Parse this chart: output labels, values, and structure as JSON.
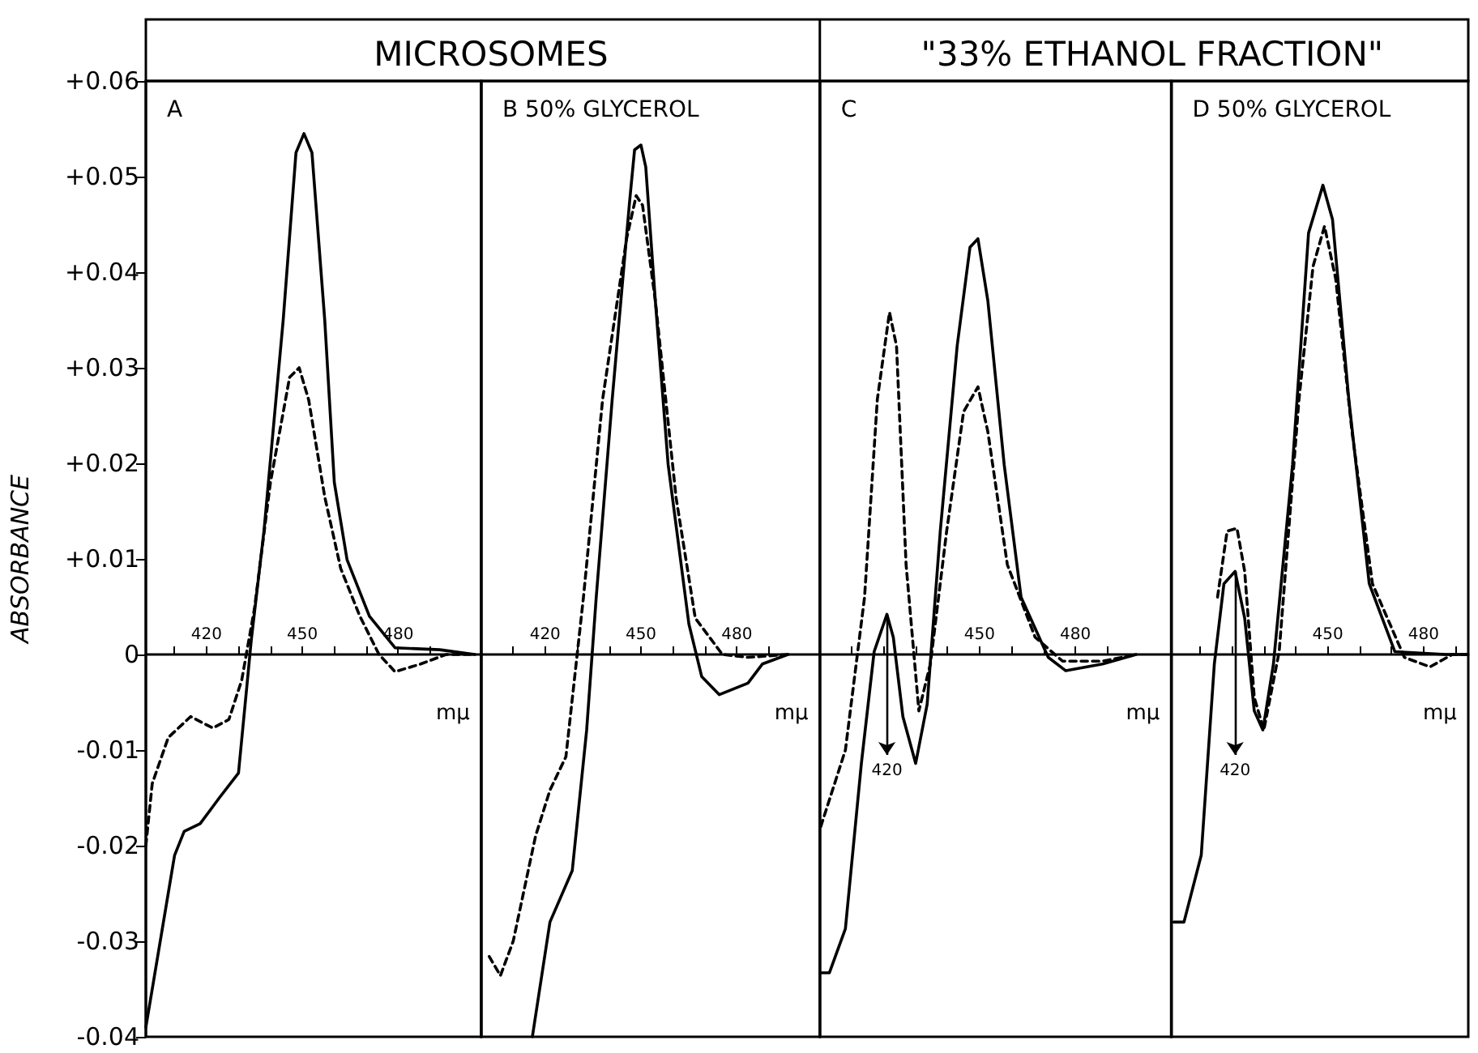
{
  "chart_data": [
    {
      "type": "line",
      "title": "MICROSOMES",
      "subtitle": "A",
      "ylabel": "ABSORBANCE",
      "xlabel": "mμ",
      "xlim": [
        401,
        506
      ],
      "xticks": [
        {
          "value": 410,
          "label": null
        },
        420,
        {
          "value": 430,
          "label": null
        },
        {
          "value": 440,
          "label": null
        },
        450,
        {
          "value": 460,
          "label": null
        },
        {
          "value": 470,
          "label": null
        },
        480,
        {
          "value": 490,
          "label": null
        }
      ],
      "ylim": [
        -0.04,
        0.06
      ],
      "yticks": [
        -0.04,
        -0.03,
        -0.02,
        -0.01,
        0,
        {
          "value": 0.01,
          "label": "+0.01"
        },
        {
          "value": 0.02,
          "label": "+0.02"
        },
        {
          "value": 0.03,
          "label": "+0.03"
        },
        {
          "value": 0.04,
          "label": "+0.04"
        },
        {
          "value": 0.05,
          "label": "+0.05"
        },
        {
          "value": 0.06,
          "label": "+0.06"
        }
      ],
      "grid": false,
      "marker": "none",
      "series": [
        {
          "color": "#000000",
          "line_style": "solid",
          "x": [
            401,
            407,
            410,
            413,
            418,
            424,
            430,
            433,
            434,
            438,
            444,
            448,
            450.5,
            453,
            457,
            460,
            464,
            471,
            479,
            493,
            504
          ],
          "values": [
            -0.039,
            -0.027,
            -0.021,
            -0.0185,
            -0.0177,
            -0.015,
            -0.0124,
            -0.002,
            0.0015,
            0.013,
            0.035,
            0.0525,
            0.0545,
            0.0525,
            0.035,
            0.018,
            0.0099,
            0.004,
            0.0007,
            0.0005,
            0
          ]
        },
        {
          "color": "#000000",
          "line_style": "dashed",
          "x": [
            401,
            403,
            408,
            415,
            422,
            427,
            431,
            435,
            440,
            446,
            449,
            452,
            457,
            462,
            468,
            474,
            479,
            487,
            495,
            504
          ],
          "values": [
            -0.02,
            -0.0135,
            -0.0087,
            -0.0065,
            -0.0077,
            -0.0068,
            -0.0027,
            0.0048,
            0.018,
            0.029,
            0.03,
            0.0266,
            0.0165,
            0.009,
            0.004,
            0,
            -0.0018,
            -0.001,
            0,
            0
          ]
        }
      ]
    },
    {
      "type": "line",
      "subtitle": "B 50% GLYCEROL",
      "xlabel": "mμ",
      "xlim": [
        400,
        506
      ],
      "xticks": [
        {
          "value": 410,
          "label": null
        },
        420,
        {
          "value": 430,
          "label": null
        },
        {
          "value": 440,
          "label": null
        },
        450,
        {
          "value": 460,
          "label": null
        },
        {
          "value": 470,
          "label": null
        },
        480,
        {
          "value": 490,
          "label": null
        }
      ],
      "ylim": [
        -0.04,
        0.06
      ],
      "tick_labels": "x",
      "grid": false,
      "marker": "none",
      "series": [
        {
          "color": "#000000",
          "line_style": "solid",
          "x": [
            416,
            421.5,
            428.5,
            433,
            436,
            441,
            446.5,
            448,
            450,
            451.5,
            454.5,
            458.5,
            465,
            469,
            474.5,
            483.5,
            488,
            496
          ],
          "values": [
            -0.04,
            -0.028,
            -0.0226,
            -0.0079,
            0.006,
            0.0267,
            0.0476,
            0.0528,
            0.0533,
            0.051,
            0.037,
            0.0199,
            0.0032,
            -0.0023,
            -0.0042,
            -0.003,
            -0.001,
            0
          ]
        },
        {
          "color": "#000000",
          "line_style": "dashed",
          "x": [
            402.5,
            406,
            410,
            417,
            421.5,
            426.5,
            432,
            438,
            445.5,
            448.5,
            450.5,
            454.5,
            461,
            467,
            475.5,
            483.5,
            496
          ],
          "values": [
            -0.0316,
            -0.0336,
            -0.03,
            -0.019,
            -0.0142,
            -0.0107,
            0.006,
            0.0267,
            0.0435,
            0.048,
            0.047,
            0.037,
            0.0164,
            0.0038,
            0,
            -0.0003,
            0
          ]
        }
      ]
    },
    {
      "type": "line",
      "title": "\"33% ETHANOL FRACTION\"",
      "subtitle": "C",
      "xlabel": "mμ",
      "xlim": [
        400,
        510
      ],
      "xticks": [
        {
          "value": 410,
          "label": null
        },
        {
          "value": 420,
          "label": null
        },
        {
          "value": 430,
          "label": null
        },
        {
          "value": 440,
          "label": null
        },
        450,
        {
          "value": 460,
          "label": null
        },
        {
          "value": 470,
          "label": null
        },
        480,
        {
          "value": 490,
          "label": null
        }
      ],
      "ylim": [
        -0.04,
        0.06
      ],
      "tick_labels": "x",
      "grid": false,
      "marker": "none",
      "annotations": [
        {
          "text": "420",
          "x": 421,
          "y": 0.0042
        }
      ],
      "series": [
        {
          "color": "#000000",
          "line_style": "solid",
          "x": [
            400.3,
            403,
            408,
            413,
            417,
            421,
            423,
            426,
            430,
            433.6,
            437.7,
            443,
            447,
            449.5,
            452.6,
            457.7,
            463,
            471.5,
            477,
            488.5,
            499
          ],
          "values": [
            -0.0333,
            -0.0333,
            -0.0287,
            -0.0114,
            0.0003,
            0.0042,
            0.0018,
            -0.0065,
            -0.0114,
            -0.0052,
            0.0129,
            0.0323,
            0.0426,
            0.0435,
            0.037,
            0.0199,
            0.006,
            -0.0003,
            -0.0017,
            -0.001,
            0
          ]
        },
        {
          "color": "#000000",
          "line_style": "dashed",
          "x": [
            400.3,
            408,
            414,
            418,
            421.8,
            424,
            427,
            431,
            434.6,
            439.7,
            445,
            449.5,
            452.6,
            458.7,
            467.4,
            476,
            488.5,
            499
          ],
          "values": [
            -0.018,
            -0.01,
            0.006,
            0.0267,
            0.0358,
            0.0323,
            0.0094,
            -0.0059,
            -0.001,
            0.0129,
            0.0254,
            0.028,
            0.0233,
            0.0094,
            0.0018,
            -0.0007,
            -0.0007,
            0
          ]
        }
      ]
    },
    {
      "type": "line",
      "subtitle": "D 50% GLYCEROL",
      "xlabel": "mμ",
      "xlim": [
        401,
        494
      ],
      "xticks": [
        {
          "value": 410,
          "label": null
        },
        {
          "value": 420,
          "label": null
        },
        {
          "value": 430,
          "label": null
        },
        {
          "value": 440,
          "label": null
        },
        450,
        {
          "value": 460,
          "label": null
        },
        {
          "value": 470,
          "label": null
        },
        480,
        {
          "value": 490,
          "label": null
        }
      ],
      "ylim": [
        -0.04,
        0.06
      ],
      "tick_labels": "x",
      "grid": false,
      "marker": "none",
      "annotations": [
        {
          "text": "420",
          "x": 421,
          "y": 0.0087
        }
      ],
      "series": [
        {
          "color": "#000000",
          "line_style": "solid",
          "x": [
            401.8,
            405,
            410.4,
            414.5,
            417.5,
            421,
            424,
            427,
            429.7,
            433,
            439,
            444,
            448.5,
            451.5,
            456.6,
            463,
            471,
            487,
            493.6
          ],
          "values": [
            -0.028,
            -0.028,
            -0.021,
            -0.001,
            0.0074,
            0.0087,
            0.0038,
            -0.0059,
            -0.0079,
            -0.001,
            0.0199,
            0.0441,
            0.0491,
            0.0455,
            0.0267,
            0.0074,
            0.0003,
            0,
            0
          ]
        },
        {
          "color": "#000000",
          "line_style": "dashed",
          "x": [
            415.5,
            418.5,
            421.6,
            424,
            427,
            430,
            434.8,
            441,
            445.4,
            449,
            452.5,
            457.6,
            464,
            474,
            482,
            489,
            493.6
          ],
          "values": [
            0.006,
            0.0129,
            0.0132,
            0.0087,
            -0.0045,
            -0.0079,
            0.0003,
            0.0267,
            0.0406,
            0.0448,
            0.0393,
            0.0233,
            0.0074,
            -0.0003,
            -0.0013,
            0,
            0
          ]
        }
      ]
    }
  ]
}
